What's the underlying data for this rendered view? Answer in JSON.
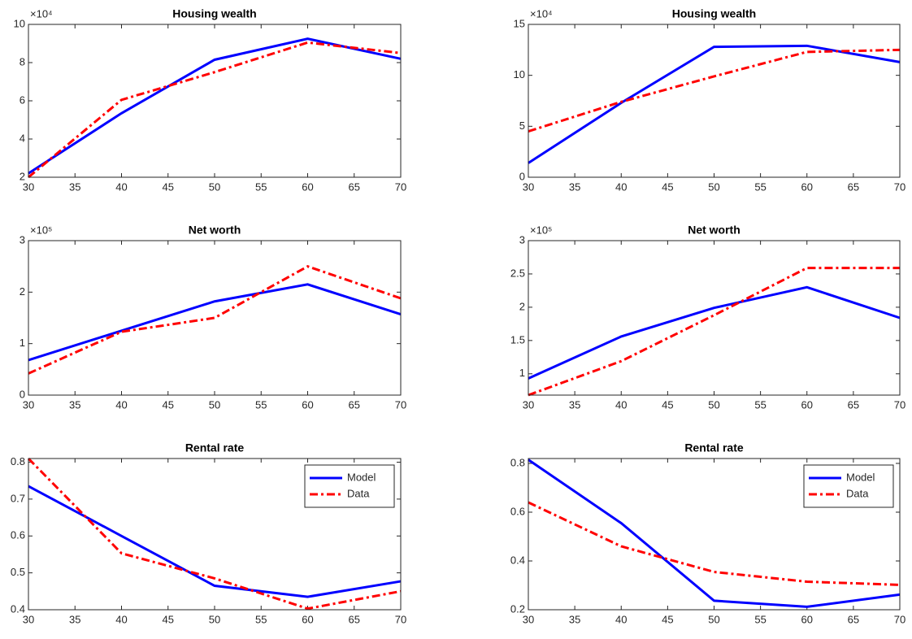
{
  "chart_data": [
    {
      "type": "line",
      "title": "Housing wealth",
      "y_multiplier": "×10⁴",
      "x": [
        30,
        40,
        50,
        60,
        70
      ],
      "xlim": [
        30,
        70
      ],
      "xticks": [
        30,
        35,
        40,
        45,
        50,
        55,
        60,
        65,
        70
      ],
      "ylim": [
        2,
        10
      ],
      "yticks": [
        2,
        4,
        6,
        8,
        10
      ],
      "grid": false,
      "series": [
        {
          "name": "Model",
          "color": "#0000ff",
          "dash": "solid",
          "values": [
            2.2,
            5.35,
            8.15,
            9.25,
            8.2
          ]
        },
        {
          "name": "Data",
          "color": "#ff0000",
          "dash": "dashdot",
          "values": [
            2.0,
            6.05,
            7.5,
            9.05,
            8.5
          ]
        }
      ]
    },
    {
      "type": "line",
      "title": "Housing wealth",
      "y_multiplier": "×10⁴",
      "x": [
        30,
        40,
        50,
        60,
        70
      ],
      "xlim": [
        30,
        70
      ],
      "xticks": [
        30,
        35,
        40,
        45,
        50,
        55,
        60,
        65,
        70
      ],
      "ylim": [
        0,
        15
      ],
      "yticks": [
        0,
        5,
        10,
        15
      ],
      "grid": false,
      "series": [
        {
          "name": "Model",
          "color": "#0000ff",
          "dash": "solid",
          "values": [
            1.4,
            7.3,
            12.8,
            12.9,
            11.3
          ]
        },
        {
          "name": "Data",
          "color": "#ff0000",
          "dash": "dashdot",
          "values": [
            4.5,
            7.4,
            9.9,
            12.3,
            12.5
          ]
        }
      ]
    },
    {
      "type": "line",
      "title": "Net worth",
      "y_multiplier": "×10⁵",
      "x": [
        30,
        40,
        50,
        60,
        70
      ],
      "xlim": [
        30,
        70
      ],
      "xticks": [
        30,
        35,
        40,
        45,
        50,
        55,
        60,
        65,
        70
      ],
      "ylim": [
        0,
        3
      ],
      "yticks": [
        0,
        1,
        2,
        3
      ],
      "grid": false,
      "series": [
        {
          "name": "Model",
          "color": "#0000ff",
          "dash": "solid",
          "values": [
            0.68,
            1.25,
            1.82,
            2.15,
            1.57
          ]
        },
        {
          "name": "Data",
          "color": "#ff0000",
          "dash": "dashdot",
          "values": [
            0.42,
            1.23,
            1.5,
            2.5,
            1.88
          ]
        }
      ]
    },
    {
      "type": "line",
      "title": "Net worth",
      "y_multiplier": "×10⁵",
      "x": [
        30,
        40,
        50,
        60,
        70
      ],
      "xlim": [
        30,
        70
      ],
      "xticks": [
        30,
        35,
        40,
        45,
        50,
        55,
        60,
        65,
        70
      ],
      "ylim": [
        0.68,
        3
      ],
      "yticks": [
        1,
        1.5,
        2,
        2.5,
        3
      ],
      "grid": false,
      "series": [
        {
          "name": "Model",
          "color": "#0000ff",
          "dash": "solid",
          "values": [
            0.93,
            1.56,
            1.99,
            2.3,
            1.84
          ]
        },
        {
          "name": "Data",
          "color": "#ff0000",
          "dash": "dashdot",
          "values": [
            0.68,
            1.19,
            1.88,
            2.59,
            2.59
          ]
        }
      ]
    },
    {
      "type": "line",
      "title": "Rental rate",
      "legend": "upper right",
      "x": [
        30,
        40,
        50,
        60,
        70
      ],
      "xlim": [
        30,
        70
      ],
      "xticks": [
        30,
        35,
        40,
        45,
        50,
        55,
        60,
        65,
        70
      ],
      "ylim": [
        0.4,
        0.81
      ],
      "yticks": [
        0.4,
        0.5,
        0.6,
        0.7,
        0.8
      ],
      "grid": false,
      "series": [
        {
          "name": "Model",
          "color": "#0000ff",
          "dash": "solid",
          "values": [
            0.735,
            0.6,
            0.465,
            0.435,
            0.477
          ]
        },
        {
          "name": "Data",
          "color": "#ff0000",
          "dash": "dashdot",
          "values": [
            0.81,
            0.553,
            0.485,
            0.403,
            0.45
          ]
        }
      ]
    },
    {
      "type": "line",
      "title": "Rental rate",
      "legend": "upper right",
      "x": [
        30,
        40,
        50,
        60,
        70
      ],
      "xlim": [
        30,
        70
      ],
      "xticks": [
        30,
        35,
        40,
        45,
        50,
        55,
        60,
        65,
        70
      ],
      "ylim": [
        0.2,
        0.82
      ],
      "yticks": [
        0.2,
        0.4,
        0.6,
        0.8
      ],
      "grid": false,
      "series": [
        {
          "name": "Model",
          "color": "#0000ff",
          "dash": "solid",
          "values": [
            0.815,
            0.555,
            0.237,
            0.212,
            0.262
          ]
        },
        {
          "name": "Data",
          "color": "#ff0000",
          "dash": "dashdot",
          "values": [
            0.64,
            0.46,
            0.355,
            0.315,
            0.302
          ]
        }
      ]
    }
  ]
}
